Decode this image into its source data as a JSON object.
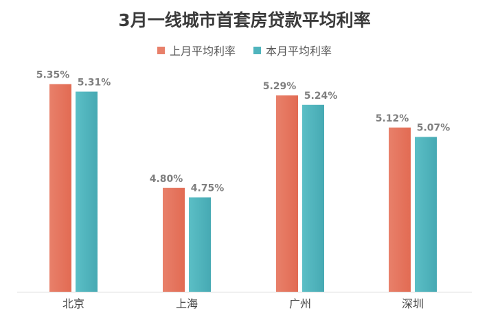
{
  "chart_data": {
    "type": "bar",
    "title": "3月一线城市首套房贷款平均利率",
    "categories": [
      "北京",
      "上海",
      "广州",
      "深圳"
    ],
    "series": [
      {
        "name": "上月平均利率",
        "values": [
          5.35,
          4.8,
          5.29,
          5.12
        ],
        "labels": [
          "5.35%",
          "4.80%",
          "5.29%",
          "5.12%"
        ],
        "color": "#e8806a"
      },
      {
        "name": "本月平均利率",
        "values": [
          5.31,
          4.75,
          5.24,
          5.07
        ],
        "labels": [
          "5.31%",
          "4.75%",
          "5.24%",
          "5.07%"
        ],
        "color": "#4fb4bd"
      }
    ],
    "ylim": [
      4.25,
      5.45
    ],
    "legend_position": "top",
    "grid": false,
    "xlabel": "",
    "ylabel": ""
  }
}
